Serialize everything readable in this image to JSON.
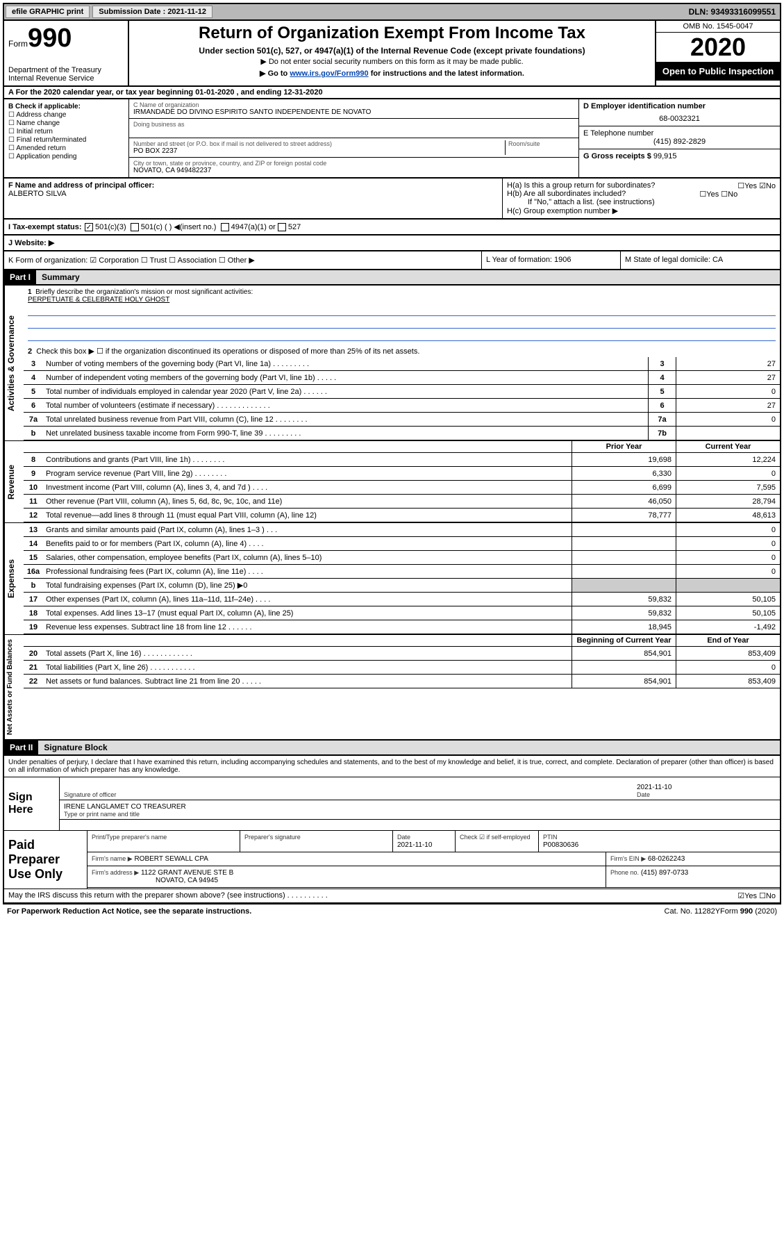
{
  "topbar": {
    "efile": "efile GRAPHIC print",
    "submission_label": "Submission Date : 2021-11-12",
    "dln": "DLN: 93493316099551"
  },
  "header": {
    "form_label": "Form",
    "form_number": "990",
    "dept": "Department of the Treasury\nInternal Revenue Service",
    "title": "Return of Organization Exempt From Income Tax",
    "subtitle1": "Under section 501(c), 527, or 4947(a)(1) of the Internal Revenue Code (except private foundations)",
    "subtitle2": "▶ Do not enter social security numbers on this form as it may be made public.",
    "subtitle3_pre": "▶ Go to ",
    "subtitle3_link": "www.irs.gov/Form990",
    "subtitle3_post": " for instructions and the latest information.",
    "omb": "OMB No. 1545-0047",
    "year": "2020",
    "open": "Open to Public Inspection"
  },
  "row_a": "A For the 2020 calendar year, or tax year beginning 01-01-2020   , and ending 12-31-2020",
  "col_b": {
    "label": "B Check if applicable:",
    "items": [
      "☐ Address change",
      "☐ Name change",
      "☐ Initial return",
      "☐ Final return/terminated",
      "☐ Amended return",
      "☐ Application pending"
    ]
  },
  "col_c": {
    "name_label": "C Name of organization",
    "name": "IRMANDADE DO DIVINO ESPIRITO SANTO INDEPENDENTE DE NOVATO",
    "dba_label": "Doing business as",
    "dba": "",
    "addr_label": "Number and street (or P.O. box if mail is not delivered to street address)",
    "addr": "PO BOX 2237",
    "room_label": "Room/suite",
    "city_label": "City or town, state or province, country, and ZIP or foreign postal code",
    "city": "NOVATO, CA  949482237"
  },
  "col_d": {
    "ein_label": "D Employer identification number",
    "ein": "68-0032321",
    "tel_label": "E Telephone number",
    "tel": "(415) 892-2829",
    "gross_label": "G Gross receipts $",
    "gross": "99,915"
  },
  "sec_f": {
    "left_label": "F Name and address of principal officer:",
    "left_name": "ALBERTO SILVA",
    "ha": "H(a)  Is this a group return for subordinates?",
    "ha_ans": "☐Yes ☑No",
    "hb": "H(b)  Are all subordinates included?",
    "hb_ans": "☐Yes ☐No",
    "hb_note": "If \"No,\" attach a list. (see instructions)",
    "hc": "H(c)  Group exemption number ▶"
  },
  "tax_status": {
    "label": "I  Tax-exempt status:",
    "opt1": "501(c)(3)",
    "opt2": "501(c) (  ) ◀(insert no.)",
    "opt3": "4947(a)(1) or",
    "opt4": "527"
  },
  "website_label": "J  Website: ▶",
  "row_k": {
    "k": "K Form of organization:  ☑ Corporation  ☐ Trust  ☐ Association  ☐ Other ▶",
    "l": "L Year of formation: 1906",
    "m": "M State of legal domicile: CA"
  },
  "part1": {
    "hdr": "Part I",
    "title": "Summary",
    "l1": "Briefly describe the organization's mission or most significant activities:",
    "l1_val": "PERPETUATE & CELEBRATE HOLY GHOST",
    "l2": "Check this box ▶ ☐  if the organization discontinued its operations or disposed of more than 25% of its net assets.",
    "lines_ag": [
      {
        "n": "3",
        "t": "Number of voting members of the governing body (Part VI, line 1a)   .   .   .   .   .   .   .   .   .",
        "box": "3",
        "v": "27"
      },
      {
        "n": "4",
        "t": "Number of independent voting members of the governing body (Part VI, line 1b)   .   .   .   .   .",
        "box": "4",
        "v": "27"
      },
      {
        "n": "5",
        "t": "Total number of individuals employed in calendar year 2020 (Part V, line 2a)   .   .   .   .   .   .",
        "box": "5",
        "v": "0"
      },
      {
        "n": "6",
        "t": "Total number of volunteers (estimate if necessary)   .   .   .   .   .   .   .   .   .   .   .   .   .",
        "box": "6",
        "v": "27"
      },
      {
        "n": "7a",
        "t": "Total unrelated business revenue from Part VIII, column (C), line 12   .   .   .   .   .   .   .   .",
        "box": "7a",
        "v": "0"
      },
      {
        "n": "b",
        "t": "Net unrelated business taxable income from Form 990-T, line 39   .   .   .   .   .   .   .   .   .",
        "box": "7b",
        "v": ""
      }
    ],
    "col_hdr1": "Prior Year",
    "col_hdr2": "Current Year",
    "revenue": [
      {
        "n": "8",
        "t": "Contributions and grants (Part VIII, line 1h)   .   .   .   .   .   .   .   .",
        "p": "19,698",
        "c": "12,224"
      },
      {
        "n": "9",
        "t": "Program service revenue (Part VIII, line 2g)   .   .   .   .   .   .   .   .",
        "p": "6,330",
        "c": "0"
      },
      {
        "n": "10",
        "t": "Investment income (Part VIII, column (A), lines 3, 4, and 7d )   .   .   .   .",
        "p": "6,699",
        "c": "7,595"
      },
      {
        "n": "11",
        "t": "Other revenue (Part VIII, column (A), lines 5, 6d, 8c, 9c, 10c, and 11e)",
        "p": "46,050",
        "c": "28,794"
      },
      {
        "n": "12",
        "t": "Total revenue—add lines 8 through 11 (must equal Part VIII, column (A), line 12)",
        "p": "78,777",
        "c": "48,613"
      }
    ],
    "expenses": [
      {
        "n": "13",
        "t": "Grants and similar amounts paid (Part IX, column (A), lines 1–3 )   .   .   .",
        "p": "",
        "c": "0"
      },
      {
        "n": "14",
        "t": "Benefits paid to or for members (Part IX, column (A), line 4)   .   .   .   .",
        "p": "",
        "c": "0"
      },
      {
        "n": "15",
        "t": "Salaries, other compensation, employee benefits (Part IX, column (A), lines 5–10)",
        "p": "",
        "c": "0"
      },
      {
        "n": "16a",
        "t": "Professional fundraising fees (Part IX, column (A), line 11e)   .   .   .   .",
        "p": "",
        "c": "0"
      },
      {
        "n": "b",
        "t": "Total fundraising expenses (Part IX, column (D), line 25) ▶0",
        "p": "__gray__",
        "c": "__gray__"
      },
      {
        "n": "17",
        "t": "Other expenses (Part IX, column (A), lines 11a–11d, 11f–24e)   .   .   .   .",
        "p": "59,832",
        "c": "50,105"
      },
      {
        "n": "18",
        "t": "Total expenses. Add lines 13–17 (must equal Part IX, column (A), line 25)",
        "p": "59,832",
        "c": "50,105"
      },
      {
        "n": "19",
        "t": "Revenue less expenses. Subtract line 18 from line 12   .   .   .   .   .   .",
        "p": "18,945",
        "c": "-1,492"
      }
    ],
    "net_hdr1": "Beginning of Current Year",
    "net_hdr2": "End of Year",
    "netassets": [
      {
        "n": "20",
        "t": "Total assets (Part X, line 16)   .   .   .   .   .   .   .   .   .   .   .   .",
        "p": "854,901",
        "c": "853,409"
      },
      {
        "n": "21",
        "t": "Total liabilities (Part X, line 26)   .   .   .   .   .   .   .   .   .   .   .",
        "p": "",
        "c": "0"
      },
      {
        "n": "22",
        "t": "Net assets or fund balances. Subtract line 21 from line 20   .   .   .   .   .",
        "p": "854,901",
        "c": "853,409"
      }
    ]
  },
  "part2": {
    "hdr": "Part II",
    "title": "Signature Block",
    "perjury": "Under penalties of perjury, I declare that I have examined this return, including accompanying schedules and statements, and to the best of my knowledge and belief, it is true, correct, and complete. Declaration of preparer (other than officer) is based on all information of which preparer has any knowledge.",
    "sign_here": "Sign Here",
    "sig_officer": "Signature of officer",
    "sig_date": "2021-11-10",
    "sig_date_lbl": "Date",
    "sig_name": "IRENE LANGLAMET CO TREASURER",
    "sig_name_lbl": "Type or print name and title",
    "paid": "Paid Preparer Use Only",
    "prep_name_lbl": "Print/Type preparer's name",
    "prep_sig_lbl": "Preparer's signature",
    "prep_date_lbl": "Date",
    "prep_date": "2021-11-10",
    "prep_check": "Check ☑ if self-employed",
    "ptin_lbl": "PTIN",
    "ptin": "P00830636",
    "firm_name_lbl": "Firm's name    ▶",
    "firm_name": "ROBERT SEWALL CPA",
    "firm_ein_lbl": "Firm's EIN ▶",
    "firm_ein": "68-0262243",
    "firm_addr_lbl": "Firm's address ▶",
    "firm_addr": "1122 GRANT AVENUE STE B",
    "firm_city": "NOVATO, CA  94945",
    "firm_phone_lbl": "Phone no.",
    "firm_phone": "(415) 897-0733",
    "discuss": "May the IRS discuss this return with the preparer shown above? (see instructions)   .   .   .   .   .   .   .   .   .   .",
    "discuss_ans": "☑Yes  ☐No"
  },
  "footer": {
    "left": "For Paperwork Reduction Act Notice, see the separate instructions.",
    "mid": "Cat. No. 11282Y",
    "right": "Form 990 (2020)"
  },
  "vtabs": {
    "ag": "Activities & Governance",
    "rev": "Revenue",
    "exp": "Expenses",
    "net": "Net Assets or Fund Balances"
  }
}
